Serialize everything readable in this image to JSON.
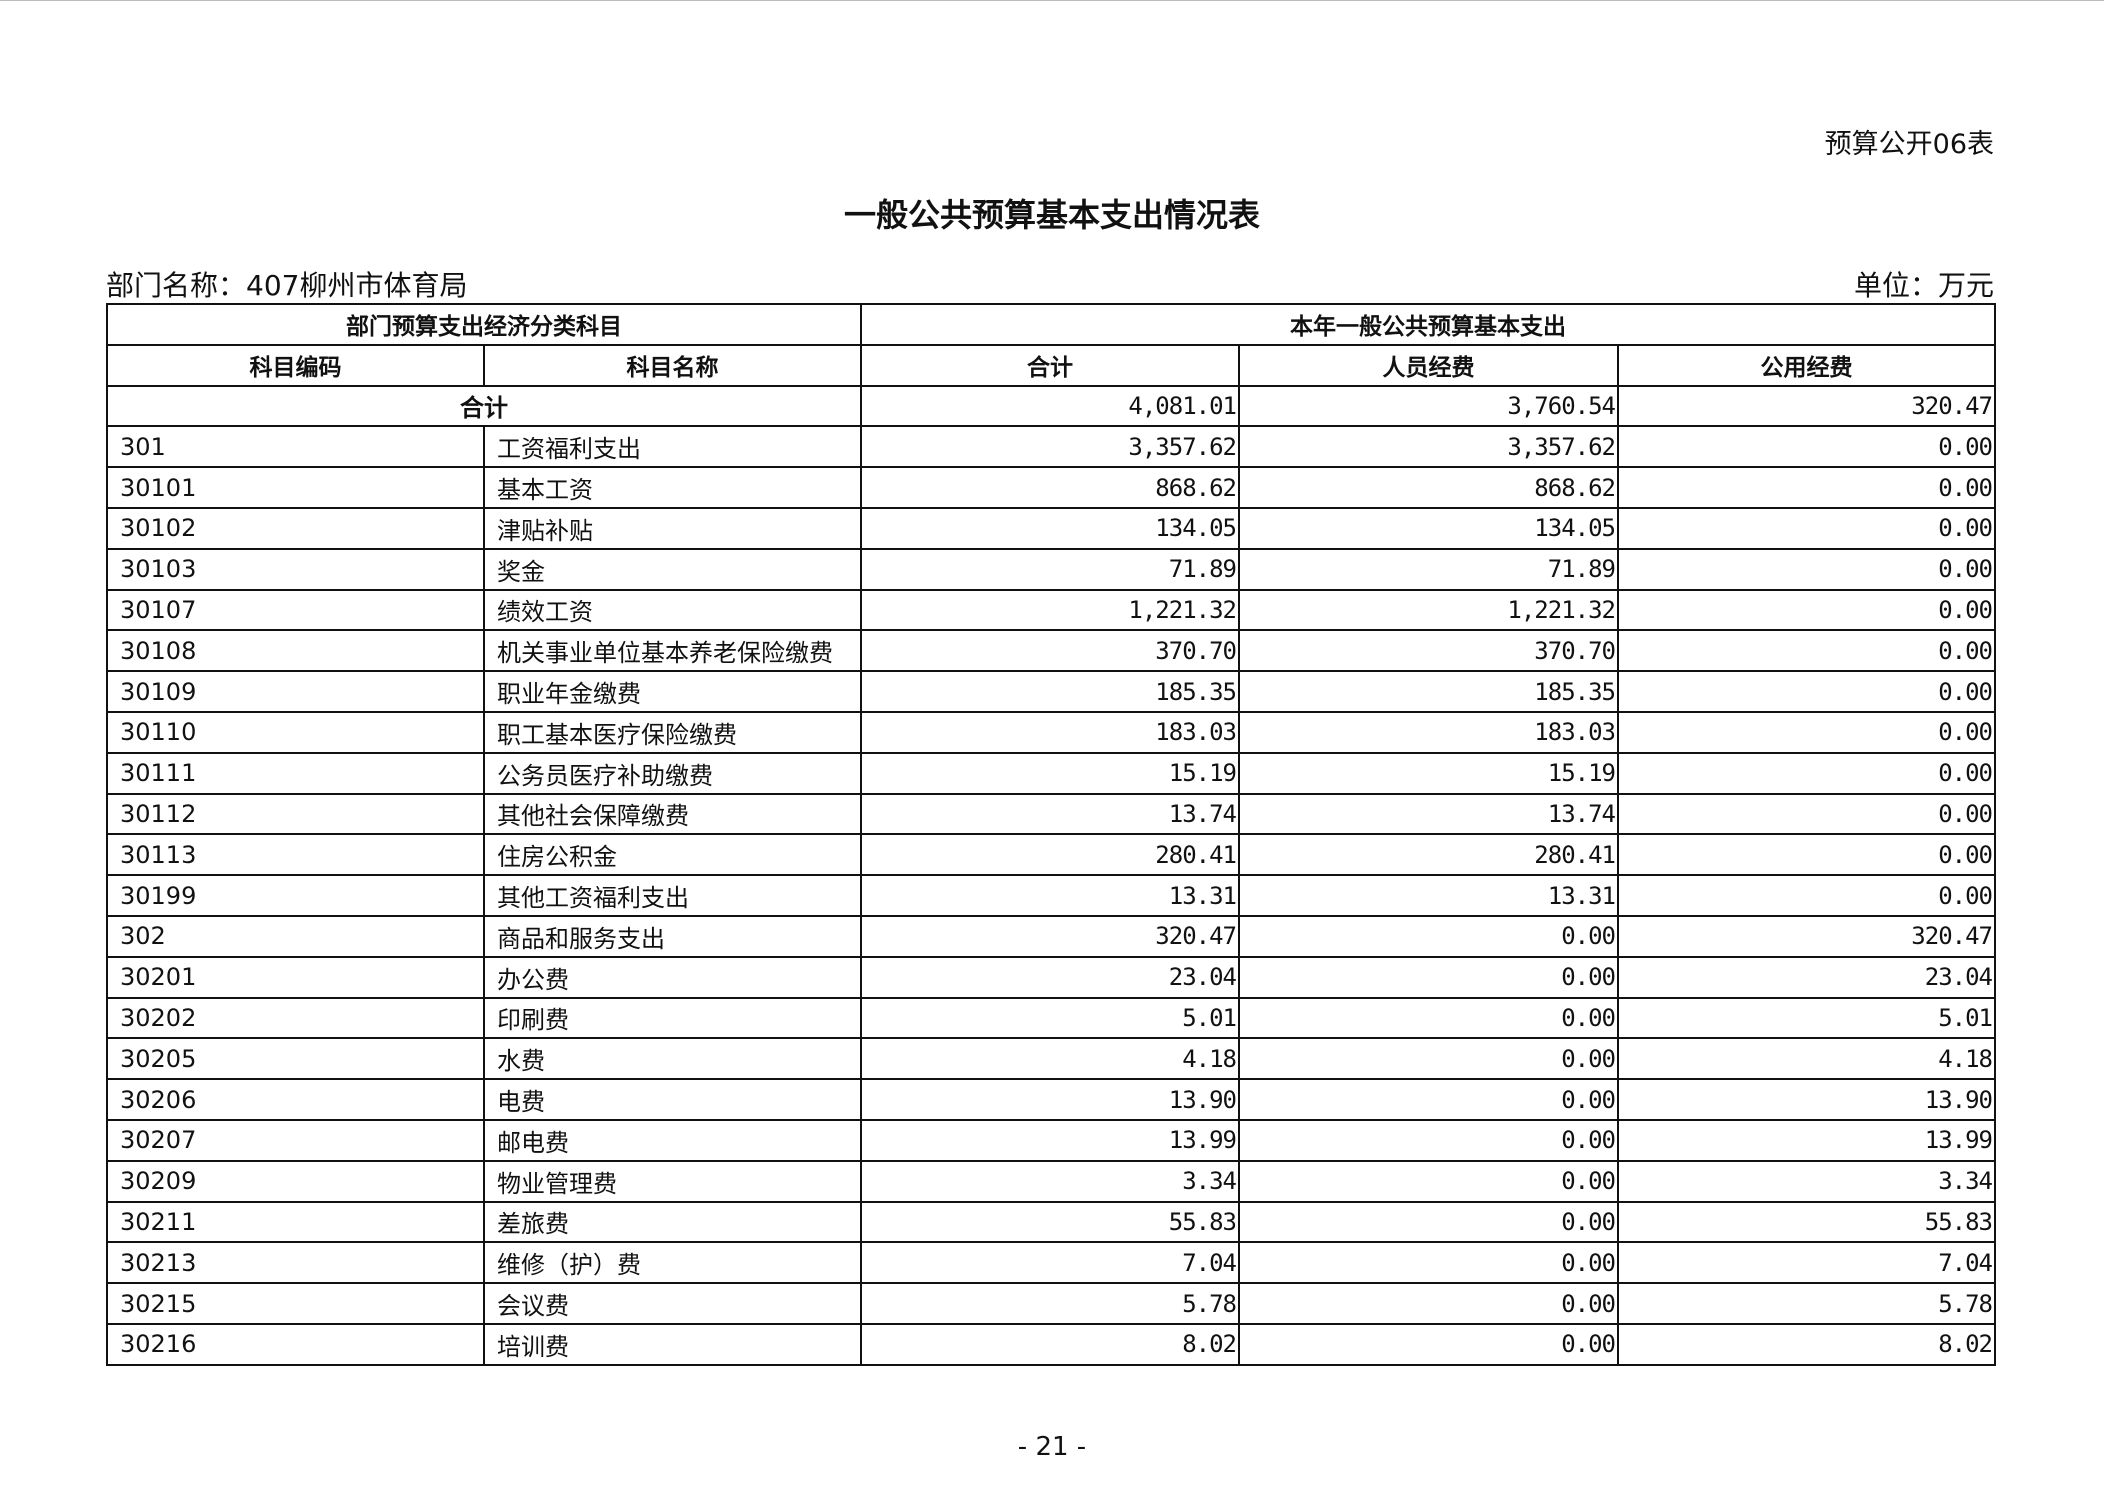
{
  "header": {
    "doc_id": "预算公开06表",
    "title": "一般公共预算基本支出情况表",
    "department": "部门名称：407柳州市体育局",
    "unit": "单位：万元"
  },
  "table": {
    "group_headers": [
      "部门预算支出经济分类科目",
      "本年一般公共预算基本支出"
    ],
    "columns": [
      "科目编码",
      "科目名称",
      "合计",
      "人员经费",
      "公用经费"
    ],
    "total": {
      "label": "合计",
      "values": [
        "4,081.01",
        "3,760.54",
        "320.47"
      ]
    },
    "rows": [
      [
        "301",
        "工资福利支出",
        "3,357.62",
        "3,357.62",
        "0.00"
      ],
      [
        "30101",
        "基本工资",
        "868.62",
        "868.62",
        "0.00"
      ],
      [
        "30102",
        "津贴补贴",
        "134.05",
        "134.05",
        "0.00"
      ],
      [
        "30103",
        "奖金",
        "71.89",
        "71.89",
        "0.00"
      ],
      [
        "30107",
        "绩效工资",
        "1,221.32",
        "1,221.32",
        "0.00"
      ],
      [
        "30108",
        "机关事业单位基本养老保险缴费",
        "370.70",
        "370.70",
        "0.00"
      ],
      [
        "30109",
        "职业年金缴费",
        "185.35",
        "185.35",
        "0.00"
      ],
      [
        "30110",
        "职工基本医疗保险缴费",
        "183.03",
        "183.03",
        "0.00"
      ],
      [
        "30111",
        "公务员医疗补助缴费",
        "15.19",
        "15.19",
        "0.00"
      ],
      [
        "30112",
        "其他社会保障缴费",
        "13.74",
        "13.74",
        "0.00"
      ],
      [
        "30113",
        "住房公积金",
        "280.41",
        "280.41",
        "0.00"
      ],
      [
        "30199",
        "其他工资福利支出",
        "13.31",
        "13.31",
        "0.00"
      ],
      [
        "302",
        "商品和服务支出",
        "320.47",
        "0.00",
        "320.47"
      ],
      [
        "30201",
        "办公费",
        "23.04",
        "0.00",
        "23.04"
      ],
      [
        "30202",
        "印刷费",
        "5.01",
        "0.00",
        "5.01"
      ],
      [
        "30205",
        "水费",
        "4.18",
        "0.00",
        "4.18"
      ],
      [
        "30206",
        "电费",
        "13.90",
        "0.00",
        "13.90"
      ],
      [
        "30207",
        "邮电费",
        "13.99",
        "0.00",
        "13.99"
      ],
      [
        "30209",
        "物业管理费",
        "3.34",
        "0.00",
        "3.34"
      ],
      [
        "30211",
        "差旅费",
        "55.83",
        "0.00",
        "55.83"
      ],
      [
        "30213",
        "维修（护）费",
        "7.04",
        "0.00",
        "7.04"
      ],
      [
        "30215",
        "会议费",
        "5.78",
        "0.00",
        "5.78"
      ],
      [
        "30216",
        "培训费",
        "8.02",
        "0.00",
        "8.02"
      ]
    ]
  },
  "footer": {
    "page_number": "- 21 -"
  }
}
